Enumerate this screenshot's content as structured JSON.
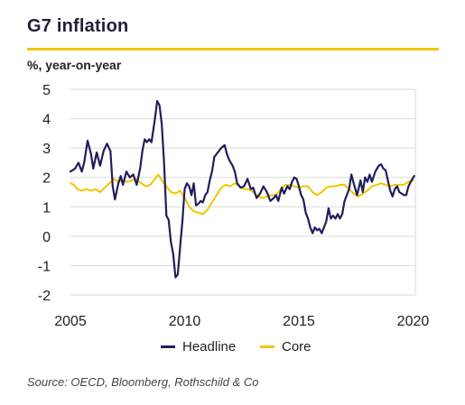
{
  "title": "G7 inflation",
  "unit_label": "%, year-on-year",
  "source": "Source: OECD, Bloomberg, Rothschild & Co",
  "colors": {
    "headline": "#1f1f5c",
    "core": "#f2c500",
    "accent_rule": "#f2c500",
    "grid": "#d9d9d9"
  },
  "chart_data": {
    "type": "line",
    "title": "G7 inflation",
    "ylabel": "%, year-on-year",
    "xlabel": "",
    "xlim": [
      2005,
      2020.1
    ],
    "ylim": [
      -2,
      5
    ],
    "x_ticks": [
      2005,
      2010,
      2015,
      2020
    ],
    "y_ticks": [
      -2,
      -1,
      0,
      1,
      2,
      3,
      4,
      5
    ],
    "grid": "horizontal",
    "legend_position": "bottom",
    "series": [
      {
        "name": "Headline",
        "color": "#1f1f5c",
        "points": [
          [
            2005.0,
            2.2
          ],
          [
            2005.2,
            2.3
          ],
          [
            2005.35,
            2.5
          ],
          [
            2005.5,
            2.2
          ],
          [
            2005.6,
            2.5
          ],
          [
            2005.75,
            3.25
          ],
          [
            2005.9,
            2.8
          ],
          [
            2006.0,
            2.3
          ],
          [
            2006.15,
            2.85
          ],
          [
            2006.3,
            2.4
          ],
          [
            2006.45,
            2.9
          ],
          [
            2006.6,
            3.15
          ],
          [
            2006.75,
            2.9
          ],
          [
            2006.85,
            1.7
          ],
          [
            2006.95,
            1.25
          ],
          [
            2007.1,
            1.8
          ],
          [
            2007.2,
            2.05
          ],
          [
            2007.3,
            1.75
          ],
          [
            2007.45,
            2.2
          ],
          [
            2007.6,
            2.0
          ],
          [
            2007.75,
            2.1
          ],
          [
            2007.9,
            1.75
          ],
          [
            2008.05,
            2.3
          ],
          [
            2008.15,
            2.9
          ],
          [
            2008.25,
            3.3
          ],
          [
            2008.35,
            3.2
          ],
          [
            2008.45,
            3.3
          ],
          [
            2008.55,
            3.2
          ],
          [
            2008.7,
            4.0
          ],
          [
            2008.8,
            4.6
          ],
          [
            2008.9,
            4.45
          ],
          [
            2009.0,
            3.8
          ],
          [
            2009.1,
            2.5
          ],
          [
            2009.2,
            0.7
          ],
          [
            2009.3,
            0.55
          ],
          [
            2009.4,
            -0.2
          ],
          [
            2009.5,
            -0.6
          ],
          [
            2009.6,
            -1.4
          ],
          [
            2009.7,
            -1.3
          ],
          [
            2009.8,
            -0.4
          ],
          [
            2009.9,
            0.5
          ],
          [
            2010.0,
            1.6
          ],
          [
            2010.1,
            1.8
          ],
          [
            2010.2,
            1.7
          ],
          [
            2010.3,
            1.4
          ],
          [
            2010.4,
            1.8
          ],
          [
            2010.5,
            1.05
          ],
          [
            2010.6,
            1.1
          ],
          [
            2010.7,
            1.2
          ],
          [
            2010.8,
            1.15
          ],
          [
            2010.9,
            1.4
          ],
          [
            2011.0,
            1.5
          ],
          [
            2011.1,
            1.9
          ],
          [
            2011.2,
            2.2
          ],
          [
            2011.3,
            2.7
          ],
          [
            2011.45,
            2.85
          ],
          [
            2011.6,
            3.0
          ],
          [
            2011.75,
            3.1
          ],
          [
            2011.85,
            2.8
          ],
          [
            2011.95,
            2.6
          ],
          [
            2012.1,
            2.4
          ],
          [
            2012.2,
            2.2
          ],
          [
            2012.3,
            1.8
          ],
          [
            2012.45,
            1.65
          ],
          [
            2012.6,
            1.7
          ],
          [
            2012.75,
            1.95
          ],
          [
            2012.9,
            1.6
          ],
          [
            2013.0,
            1.65
          ],
          [
            2013.15,
            1.3
          ],
          [
            2013.3,
            1.45
          ],
          [
            2013.45,
            1.7
          ],
          [
            2013.6,
            1.5
          ],
          [
            2013.75,
            1.2
          ],
          [
            2013.9,
            1.3
          ],
          [
            2014.0,
            1.4
          ],
          [
            2014.1,
            1.2
          ],
          [
            2014.25,
            1.65
          ],
          [
            2014.35,
            1.45
          ],
          [
            2014.5,
            1.7
          ],
          [
            2014.6,
            1.6
          ],
          [
            2014.7,
            1.85
          ],
          [
            2014.8,
            2.0
          ],
          [
            2014.9,
            1.95
          ],
          [
            2015.0,
            1.7
          ],
          [
            2015.1,
            1.4
          ],
          [
            2015.2,
            1.25
          ],
          [
            2015.3,
            0.8
          ],
          [
            2015.4,
            0.6
          ],
          [
            2015.5,
            0.3
          ],
          [
            2015.6,
            0.1
          ],
          [
            2015.7,
            0.3
          ],
          [
            2015.8,
            0.2
          ],
          [
            2015.9,
            0.25
          ],
          [
            2016.0,
            0.1
          ],
          [
            2016.1,
            0.3
          ],
          [
            2016.2,
            0.5
          ],
          [
            2016.3,
            0.95
          ],
          [
            2016.4,
            0.6
          ],
          [
            2016.5,
            0.7
          ],
          [
            2016.6,
            0.6
          ],
          [
            2016.7,
            0.75
          ],
          [
            2016.8,
            0.6
          ],
          [
            2016.9,
            0.75
          ],
          [
            2017.0,
            1.2
          ],
          [
            2017.1,
            1.4
          ],
          [
            2017.2,
            1.6
          ],
          [
            2017.3,
            2.1
          ],
          [
            2017.4,
            1.8
          ],
          [
            2017.55,
            1.4
          ],
          [
            2017.7,
            1.9
          ],
          [
            2017.8,
            1.5
          ],
          [
            2017.9,
            2.0
          ],
          [
            2018.0,
            1.85
          ],
          [
            2018.1,
            2.1
          ],
          [
            2018.2,
            1.85
          ],
          [
            2018.35,
            2.2
          ],
          [
            2018.5,
            2.4
          ],
          [
            2018.6,
            2.45
          ],
          [
            2018.7,
            2.3
          ],
          [
            2018.8,
            2.25
          ],
          [
            2018.9,
            1.9
          ],
          [
            2019.0,
            1.55
          ],
          [
            2019.1,
            1.35
          ],
          [
            2019.2,
            1.6
          ],
          [
            2019.3,
            1.7
          ],
          [
            2019.4,
            1.5
          ],
          [
            2019.5,
            1.45
          ],
          [
            2019.6,
            1.4
          ],
          [
            2019.7,
            1.4
          ],
          [
            2019.8,
            1.7
          ],
          [
            2019.9,
            1.85
          ],
          [
            2020.05,
            2.05
          ]
        ]
      },
      {
        "name": "Core",
        "color": "#f2c500",
        "points": [
          [
            2005.0,
            1.8
          ],
          [
            2005.15,
            1.75
          ],
          [
            2005.3,
            1.6
          ],
          [
            2005.5,
            1.55
          ],
          [
            2005.7,
            1.6
          ],
          [
            2005.9,
            1.55
          ],
          [
            2006.1,
            1.6
          ],
          [
            2006.3,
            1.5
          ],
          [
            2006.5,
            1.65
          ],
          [
            2006.7,
            1.8
          ],
          [
            2006.9,
            1.95
          ],
          [
            2007.1,
            1.85
          ],
          [
            2007.3,
            1.9
          ],
          [
            2007.5,
            1.85
          ],
          [
            2007.7,
            1.9
          ],
          [
            2007.9,
            1.95
          ],
          [
            2008.1,
            1.8
          ],
          [
            2008.3,
            1.7
          ],
          [
            2008.5,
            1.75
          ],
          [
            2008.7,
            1.95
          ],
          [
            2008.85,
            2.1
          ],
          [
            2009.0,
            1.9
          ],
          [
            2009.2,
            1.7
          ],
          [
            2009.4,
            1.5
          ],
          [
            2009.6,
            1.45
          ],
          [
            2009.8,
            1.55
          ],
          [
            2010.0,
            1.3
          ],
          [
            2010.2,
            1.0
          ],
          [
            2010.4,
            0.85
          ],
          [
            2010.6,
            0.8
          ],
          [
            2010.8,
            0.75
          ],
          [
            2011.0,
            0.9
          ],
          [
            2011.2,
            1.15
          ],
          [
            2011.4,
            1.4
          ],
          [
            2011.6,
            1.65
          ],
          [
            2011.8,
            1.75
          ],
          [
            2012.0,
            1.7
          ],
          [
            2012.2,
            1.8
          ],
          [
            2012.4,
            1.7
          ],
          [
            2012.6,
            1.6
          ],
          [
            2012.8,
            1.6
          ],
          [
            2013.0,
            1.5
          ],
          [
            2013.2,
            1.35
          ],
          [
            2013.4,
            1.3
          ],
          [
            2013.6,
            1.35
          ],
          [
            2013.8,
            1.4
          ],
          [
            2014.0,
            1.4
          ],
          [
            2014.2,
            1.6
          ],
          [
            2014.4,
            1.75
          ],
          [
            2014.6,
            1.75
          ],
          [
            2014.8,
            1.7
          ],
          [
            2015.0,
            1.65
          ],
          [
            2015.2,
            1.7
          ],
          [
            2015.4,
            1.7
          ],
          [
            2015.6,
            1.5
          ],
          [
            2015.8,
            1.4
          ],
          [
            2016.0,
            1.5
          ],
          [
            2016.2,
            1.65
          ],
          [
            2016.4,
            1.7
          ],
          [
            2016.6,
            1.7
          ],
          [
            2016.8,
            1.75
          ],
          [
            2017.0,
            1.75
          ],
          [
            2017.2,
            1.6
          ],
          [
            2017.4,
            1.45
          ],
          [
            2017.6,
            1.35
          ],
          [
            2017.8,
            1.45
          ],
          [
            2018.0,
            1.55
          ],
          [
            2018.2,
            1.7
          ],
          [
            2018.4,
            1.75
          ],
          [
            2018.6,
            1.8
          ],
          [
            2018.8,
            1.75
          ],
          [
            2019.0,
            1.7
          ],
          [
            2019.2,
            1.75
          ],
          [
            2019.4,
            1.75
          ],
          [
            2019.6,
            1.75
          ],
          [
            2019.8,
            1.85
          ],
          [
            2020.0,
            1.9
          ]
        ]
      }
    ]
  },
  "legend": {
    "headline_label": "Headline",
    "core_label": "Core"
  }
}
